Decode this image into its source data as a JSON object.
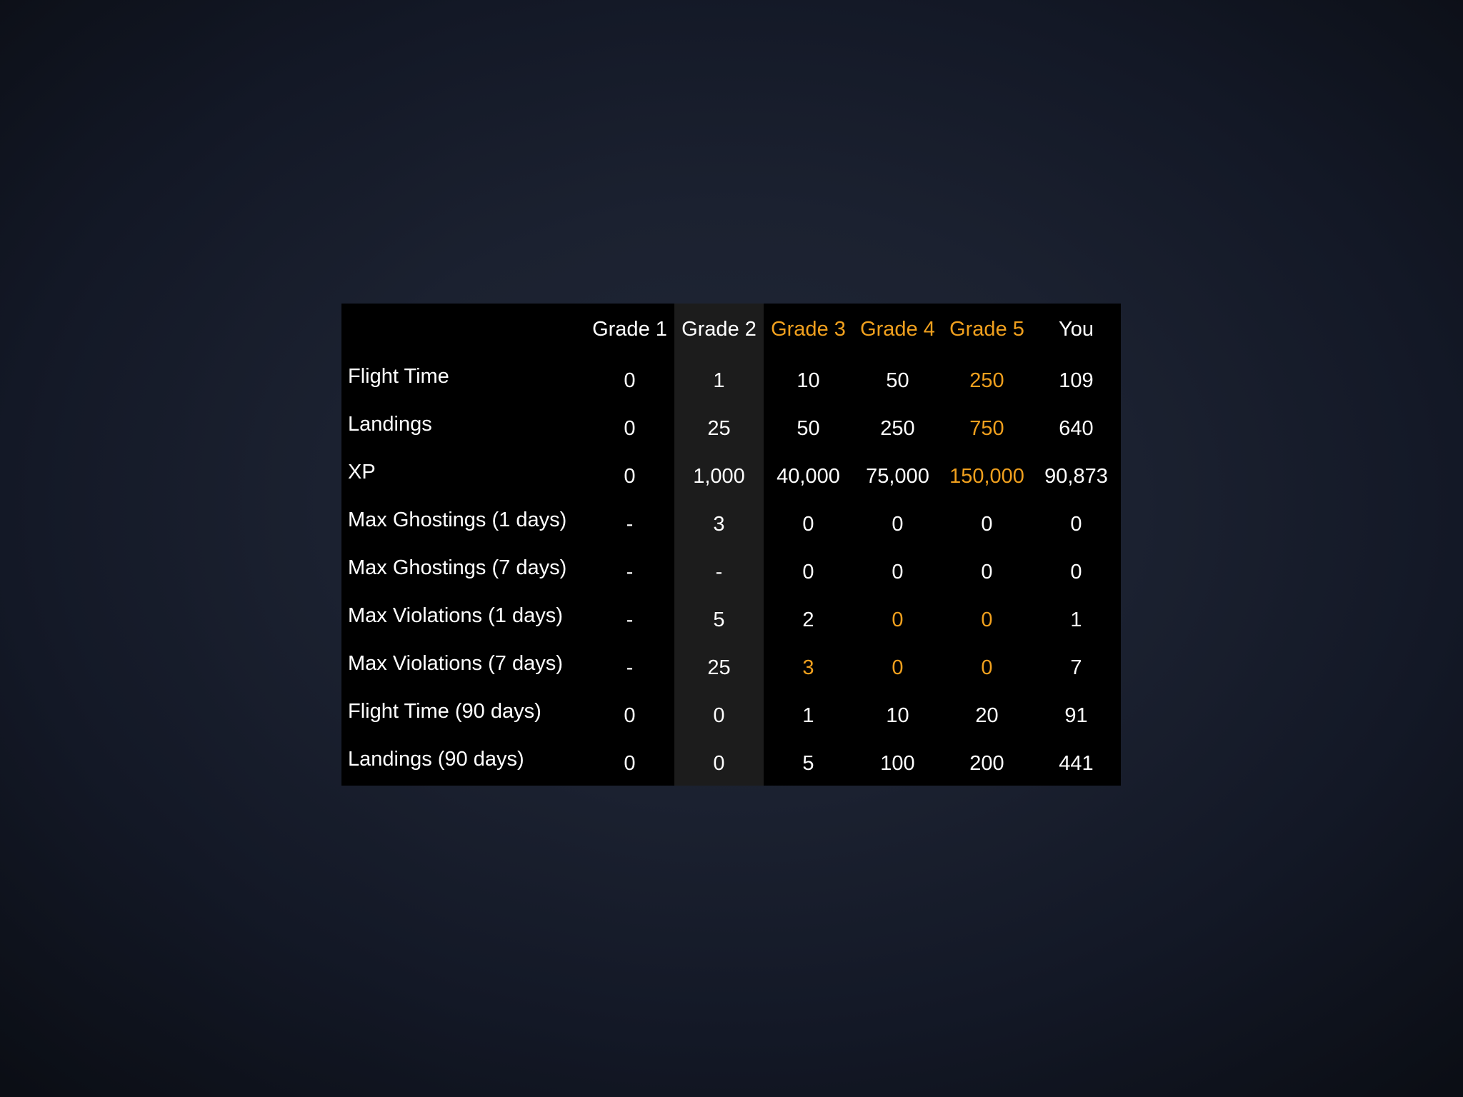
{
  "screen": {
    "name": "pilot-grade-requirements-overlay"
  },
  "colors": {
    "accent_orange": "#F0A01E",
    "text": "#FFFFFF",
    "table_bg": "#000000",
    "highlight_column_bg": "#1C1C1C",
    "page_bg_center": "#212836",
    "page_bg_edge": "#0B0E15"
  },
  "table": {
    "highlight_column": "Grade 2",
    "headers": [
      {
        "label": "",
        "orange": false
      },
      {
        "label": "Grade 1",
        "orange": false
      },
      {
        "label": "Grade 2",
        "orange": false
      },
      {
        "label": "Grade 3",
        "orange": true
      },
      {
        "label": "Grade 4",
        "orange": true
      },
      {
        "label": "Grade 5",
        "orange": true
      },
      {
        "label": "You",
        "orange": false
      }
    ],
    "rows": [
      {
        "label": "Flight Time",
        "cells": [
          {
            "v": "0"
          },
          {
            "v": "1"
          },
          {
            "v": "10"
          },
          {
            "v": "50"
          },
          {
            "v": "250",
            "orange": true
          },
          {
            "v": "109"
          }
        ]
      },
      {
        "label": "Landings",
        "cells": [
          {
            "v": "0"
          },
          {
            "v": "25"
          },
          {
            "v": "50"
          },
          {
            "v": "250"
          },
          {
            "v": "750",
            "orange": true
          },
          {
            "v": "640"
          }
        ]
      },
      {
        "label": "XP",
        "cells": [
          {
            "v": "0"
          },
          {
            "v": "1,000"
          },
          {
            "v": "40,000"
          },
          {
            "v": "75,000"
          },
          {
            "v": "150,000",
            "orange": true
          },
          {
            "v": "90,873"
          }
        ]
      },
      {
        "label": "Max Ghostings (1 days)",
        "cells": [
          {
            "v": "-"
          },
          {
            "v": "3"
          },
          {
            "v": "0"
          },
          {
            "v": "0"
          },
          {
            "v": "0"
          },
          {
            "v": "0"
          }
        ]
      },
      {
        "label": "Max Ghostings (7 days)",
        "cells": [
          {
            "v": "-"
          },
          {
            "v": "-"
          },
          {
            "v": "0"
          },
          {
            "v": "0"
          },
          {
            "v": "0"
          },
          {
            "v": "0"
          }
        ]
      },
      {
        "label": "Max Violations (1 days)",
        "cells": [
          {
            "v": "-"
          },
          {
            "v": "5"
          },
          {
            "v": "2"
          },
          {
            "v": "0",
            "orange": true
          },
          {
            "v": "0",
            "orange": true
          },
          {
            "v": "1"
          }
        ]
      },
      {
        "label": "Max Violations (7 days)",
        "cells": [
          {
            "v": "-"
          },
          {
            "v": "25"
          },
          {
            "v": "3",
            "orange": true
          },
          {
            "v": "0",
            "orange": true
          },
          {
            "v": "0",
            "orange": true
          },
          {
            "v": "7"
          }
        ]
      },
      {
        "label": "Flight Time (90 days)",
        "cells": [
          {
            "v": "0"
          },
          {
            "v": "0"
          },
          {
            "v": "1"
          },
          {
            "v": "10"
          },
          {
            "v": "20"
          },
          {
            "v": "91"
          }
        ]
      },
      {
        "label": "Landings (90 days)",
        "cells": [
          {
            "v": "0"
          },
          {
            "v": "0"
          },
          {
            "v": "5"
          },
          {
            "v": "100"
          },
          {
            "v": "200"
          },
          {
            "v": "441"
          }
        ]
      }
    ]
  }
}
